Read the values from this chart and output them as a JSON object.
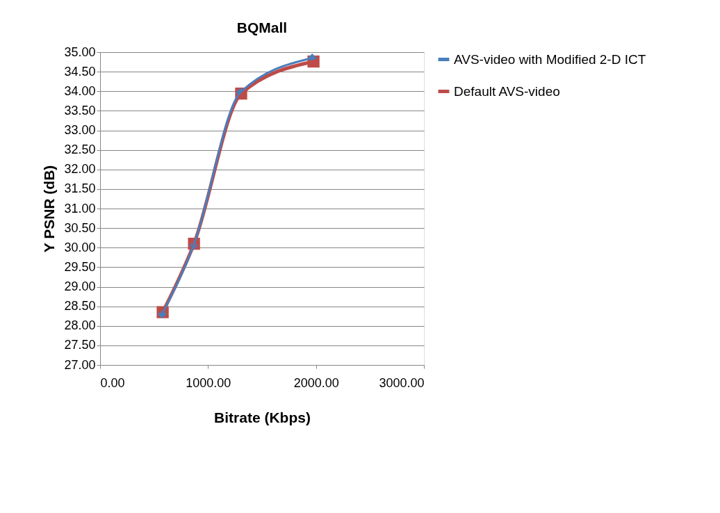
{
  "chart_data": {
    "type": "line",
    "title": "BQMall",
    "xlabel": "Bitrate (Kbps)",
    "ylabel": "Y PSNR (dB)",
    "xlim": [
      0,
      3000
    ],
    "xticks": [
      {
        "value": 0,
        "label": "0.00"
      },
      {
        "value": 1000,
        "label": "1000.00"
      },
      {
        "value": 2000,
        "label": "2000.00"
      },
      {
        "value": 3000,
        "label": "3000.00"
      }
    ],
    "ylim": [
      27,
      35
    ],
    "yticks": [
      {
        "value": 27,
        "label": "27.00"
      },
      {
        "value": 27.5,
        "label": "27.50"
      },
      {
        "value": 28,
        "label": "28.00"
      },
      {
        "value": 28.5,
        "label": "28.50"
      },
      {
        "value": 29,
        "label": "29.00"
      },
      {
        "value": 29.5,
        "label": "29.50"
      },
      {
        "value": 30,
        "label": "30.00"
      },
      {
        "value": 30.5,
        "label": "30.50"
      },
      {
        "value": 31,
        "label": "31.00"
      },
      {
        "value": 31.5,
        "label": "31.50"
      },
      {
        "value": 32,
        "label": "32.00"
      },
      {
        "value": 32.5,
        "label": "32.50"
      },
      {
        "value": 33,
        "label": "33.00"
      },
      {
        "value": 33.5,
        "label": "33.50"
      },
      {
        "value": 34,
        "label": "34.00"
      },
      {
        "value": 34.5,
        "label": "34.50"
      },
      {
        "value": 35,
        "label": "35.00"
      }
    ],
    "grid": "y",
    "legend": "right",
    "series": [
      {
        "name": "AVS-video with Modified 2-D ICT",
        "color": "#4a7ebb",
        "marker": "diamond",
        "x": [
          575,
          865,
          1300,
          1965
        ],
        "values": [
          28.3,
          30.05,
          33.97,
          34.85
        ]
      },
      {
        "name": "Default AVS-video",
        "color": "#be4b48",
        "marker": "square",
        "x": [
          580,
          870,
          1307,
          1977
        ],
        "values": [
          28.35,
          30.1,
          33.94,
          34.76
        ]
      }
    ]
  }
}
